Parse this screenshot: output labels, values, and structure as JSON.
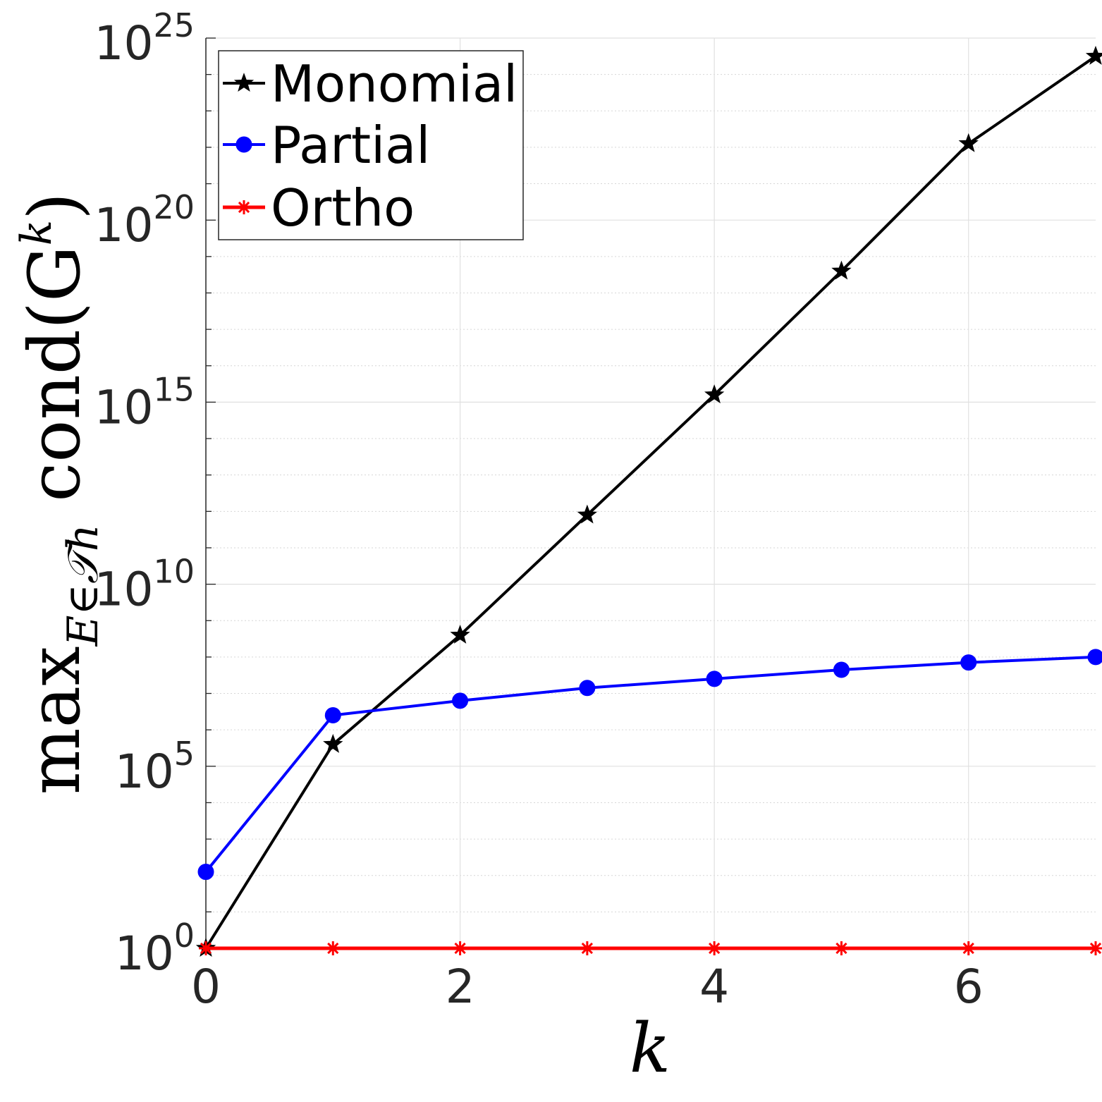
{
  "chart_data": {
    "type": "line",
    "x": [
      0,
      1,
      2,
      3,
      4,
      5,
      6,
      7
    ],
    "xlim": [
      0,
      7
    ],
    "ylim_exponent": [
      0,
      25
    ],
    "yscale": "log",
    "grid": "on",
    "legend_placement": "top-left",
    "xlabel": "k",
    "ylabel": {
      "prefix": "max",
      "subscript": "E∈𝒯h",
      "body": "cond(G",
      "superscript": "k",
      "suffix": ")"
    },
    "xticks": [
      {
        "value": 0,
        "label": "0"
      },
      {
        "value": 2,
        "label": "2"
      },
      {
        "value": 4,
        "label": "4"
      },
      {
        "value": 6,
        "label": "6"
      }
    ],
    "yticks": [
      {
        "exp": 0,
        "base": "10",
        "power": "0"
      },
      {
        "exp": 5,
        "base": "10",
        "power": "5"
      },
      {
        "exp": 10,
        "base": "10",
        "power": "10"
      },
      {
        "exp": 15,
        "base": "10",
        "power": "15"
      },
      {
        "exp": 20,
        "base": "10",
        "power": "20"
      },
      {
        "exp": 25,
        "base": "10",
        "power": "25"
      }
    ],
    "series": [
      {
        "name": "Monomial",
        "color": "#000000",
        "marker": "star",
        "y_log10": [
          0.0,
          5.6,
          8.6,
          11.9,
          15.2,
          18.6,
          22.1,
          24.5
        ]
      },
      {
        "name": "Partial",
        "color": "#0000ff",
        "marker": "circle",
        "y_log10": [
          2.1,
          6.4,
          6.8,
          7.15,
          7.4,
          7.65,
          7.85,
          8.0
        ]
      },
      {
        "name": "Ortho",
        "color": "#ff0000",
        "marker": "asterisk",
        "y_log10": [
          0,
          0,
          0,
          0,
          0,
          0,
          0,
          0
        ]
      }
    ]
  }
}
